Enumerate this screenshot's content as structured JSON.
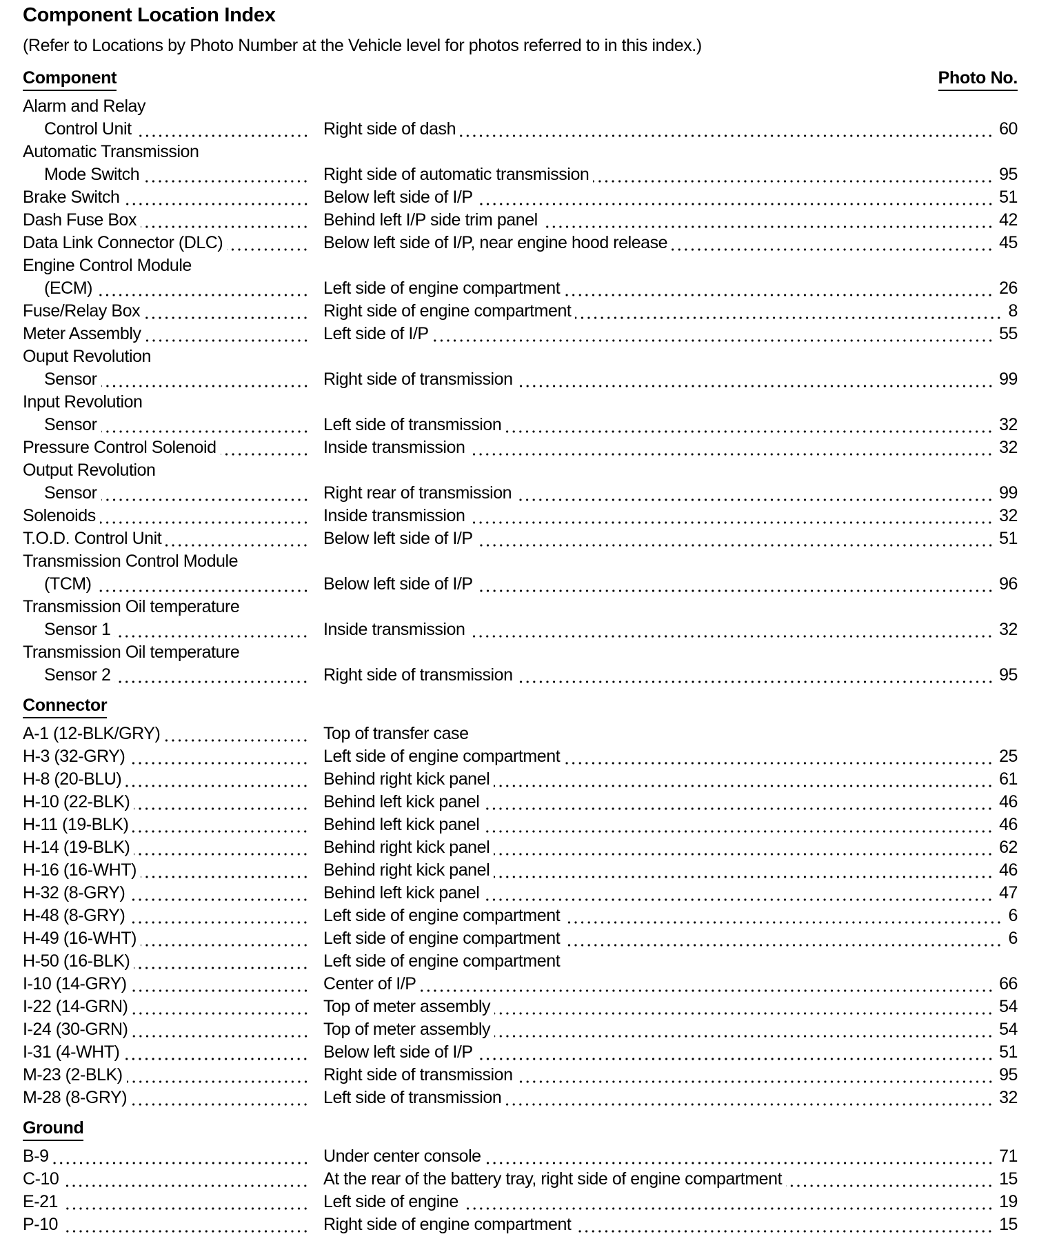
{
  "title": "Component Location Index",
  "subtitle": "(Refer to Locations by Photo Number at the Vehicle level for photos referred to in this index.)",
  "column_headers": {
    "component": "Component",
    "photo": "Photo No."
  },
  "sections": [
    {
      "heading": "Component",
      "entries": [
        {
          "lines": [
            "Alarm and Relay",
            "Control Unit"
          ],
          "location": "Right side of dash",
          "photo": "60"
        },
        {
          "lines": [
            "Automatic Transmission",
            "Mode Switch"
          ],
          "location": "Right side of automatic transmission",
          "photo": "95"
        },
        {
          "lines": [
            "Brake Switch"
          ],
          "location": "Below left side of I/P",
          "photo": "51"
        },
        {
          "lines": [
            "Dash Fuse Box"
          ],
          "location": "Behind left I/P side trim panel",
          "photo": "42"
        },
        {
          "lines": [
            "Data Link Connector (DLC)"
          ],
          "location": "Below left side of I/P, near engine hood release",
          "photo": "45"
        },
        {
          "lines": [
            "Engine Control Module",
            "(ECM)"
          ],
          "location": "Left side of engine compartment",
          "photo": "26"
        },
        {
          "lines": [
            "Fuse/Relay Box"
          ],
          "location": "Right side of engine compartment",
          "photo": "8"
        },
        {
          "lines": [
            "Meter Assembly"
          ],
          "location": "Left side of I/P",
          "photo": "55"
        },
        {
          "lines": [
            "Ouput Revolution",
            "Sensor"
          ],
          "location": "Right side of transmission",
          "photo": "99"
        },
        {
          "lines": [
            "Input Revolution",
            "Sensor"
          ],
          "location": "Left side of transmission",
          "photo": "32"
        },
        {
          "lines": [
            "Pressure Control Solenoid"
          ],
          "location": "Inside transmission",
          "photo": "32"
        },
        {
          "lines": [
            "Output Revolution",
            "Sensor"
          ],
          "location": "Right rear of transmission",
          "photo": "99"
        },
        {
          "lines": [
            "Solenoids"
          ],
          "location": "Inside transmission",
          "photo": "32"
        },
        {
          "lines": [
            "T.O.D. Control Unit"
          ],
          "location": "Below left side of I/P",
          "photo": "51"
        },
        {
          "lines": [
            "Transmission Control Module",
            "(TCM)"
          ],
          "location": "Below left side of I/P",
          "photo": "96"
        },
        {
          "lines": [
            "Transmission Oil temperature",
            "Sensor 1"
          ],
          "location": "Inside transmission",
          "photo": "32"
        },
        {
          "lines": [
            "Transmission Oil temperature",
            "Sensor 2"
          ],
          "location": "Right side of transmission",
          "photo": "95"
        }
      ]
    },
    {
      "heading": "Connector",
      "entries": [
        {
          "lines": [
            "A-1 (12-BLK/GRY)"
          ],
          "location": "Top of transfer case",
          "photo": ""
        },
        {
          "lines": [
            "H-3 (32-GRY)"
          ],
          "location": "Left side of engine compartment",
          "photo": "25"
        },
        {
          "lines": [
            "H-8 (20-BLU)"
          ],
          "location": "Behind right kick panel",
          "photo": "61"
        },
        {
          "lines": [
            "H-10 (22-BLK)"
          ],
          "location": "Behind left kick panel",
          "photo": "46"
        },
        {
          "lines": [
            "H-11 (19-BLK)"
          ],
          "location": "Behind left kick panel",
          "photo": "46"
        },
        {
          "lines": [
            "H-14 (19-BLK)"
          ],
          "location": "Behind right kick panel",
          "photo": "62"
        },
        {
          "lines": [
            "H-16 (16-WHT)"
          ],
          "location": "Behind right kick panel",
          "photo": "46"
        },
        {
          "lines": [
            "H-32 (8-GRY)"
          ],
          "location": "Behind left kick panel",
          "photo": "47"
        },
        {
          "lines": [
            "H-48 (8-GRY)"
          ],
          "location": "Left side of engine compartment",
          "photo": "6"
        },
        {
          "lines": [
            "H-49 (16-WHT)"
          ],
          "location": "Left side of engine compartment",
          "photo": "6"
        },
        {
          "lines": [
            "H-50 (16-BLK)"
          ],
          "location": "Left side of engine compartment",
          "photo": ""
        },
        {
          "lines": [
            "I-10 (14-GRY)"
          ],
          "location": "Center of I/P",
          "photo": "66"
        },
        {
          "lines": [
            "I-22 (14-GRN)"
          ],
          "location": "Top of meter assembly",
          "photo": "54"
        },
        {
          "lines": [
            "I-24 (30-GRN)"
          ],
          "location": "Top of meter assembly",
          "photo": "54"
        },
        {
          "lines": [
            "I-31 (4-WHT)"
          ],
          "location": "Below left side of I/P",
          "photo": "51"
        },
        {
          "lines": [
            "M-23 (2-BLK)"
          ],
          "location": "Right side of transmission",
          "photo": "95"
        },
        {
          "lines": [
            "M-28 (8-GRY)"
          ],
          "location": "Left side of transmission",
          "photo": "32"
        }
      ]
    },
    {
      "heading": "Ground",
      "entries": [
        {
          "lines": [
            "B-9"
          ],
          "location": "Under center console",
          "photo": "71"
        },
        {
          "lines": [
            "C-10"
          ],
          "location": "At the rear of the battery tray, right side of engine compartment",
          "photo": "15"
        },
        {
          "lines": [
            "E-21"
          ],
          "location": "Left side of engine",
          "photo": "19"
        },
        {
          "lines": [
            "P-10"
          ],
          "location": "Right side of engine compartment",
          "photo": "15"
        }
      ]
    }
  ]
}
